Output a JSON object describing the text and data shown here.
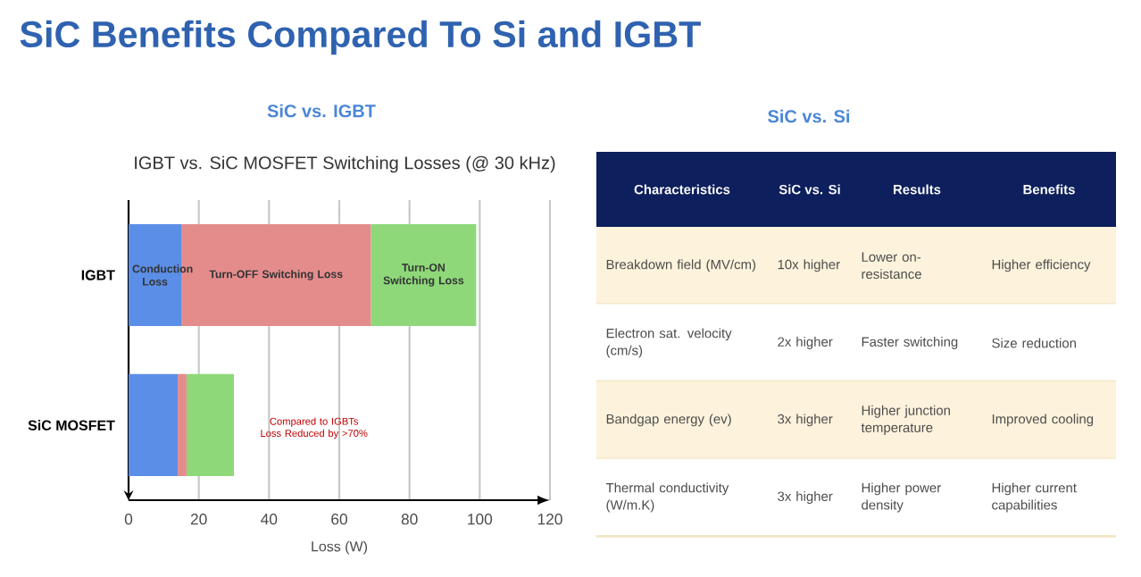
{
  "chart_data": [
    {
      "type": "bar",
      "orientation": "horizontal",
      "stacked": true,
      "title": "IGBT vs. SiC MOSFET Switching Losses (@ 30 kHz)",
      "subtitle": "SiC vs. IGBT",
      "xlabel": "Loss (W)",
      "categories": [
        "IGBT",
        "SiC MOSFET"
      ],
      "series": [
        {
          "name": "Conduction Loss",
          "color": "#5b8ee6",
          "values": [
            15,
            14
          ]
        },
        {
          "name": "Turn-OFF Switching Loss",
          "color": "#e48c8c",
          "values": [
            54,
            2.5
          ]
        },
        {
          "name": "Turn-ON Switching Loss",
          "color": "#8ed87a",
          "values": [
            30,
            13.5
          ]
        }
      ],
      "xlim": [
        0,
        120
      ],
      "xticks": [
        0,
        20,
        40,
        60,
        80,
        100,
        120
      ],
      "grid": "x",
      "annotations": [
        "SiC Benefits Compared To Si and IGBT",
        "Compared to IGBTs Loss Reduced by >70%"
      ]
    },
    {
      "type": "other",
      "title": "SiC vs. Si",
      "categories": [
        "Characteristics",
        "SiC vs. Si",
        "Results",
        "Benefits"
      ],
      "annotations": [
        "Breakdown field (MV/cm)",
        "10x higher",
        "Lower on-resistance",
        "Higher efficiency",
        "Electron sat. velocity (cm/s)",
        "2x higher",
        "Faster switching",
        "Size reduction",
        "Bandgap energy (ev)",
        "3x higher",
        "Higher junction temperature",
        "Improved cooling",
        "Thermal conductivity (W/m.K)",
        "3x higher",
        "Higher power density",
        "Higher current capabilities"
      ]
    }
  ]
}
